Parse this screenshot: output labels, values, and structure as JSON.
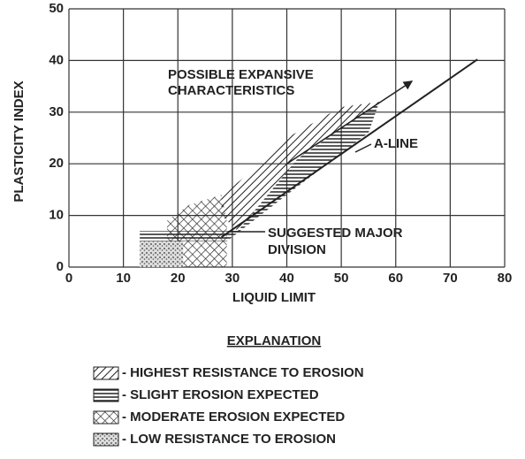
{
  "chart_data": {
    "type": "region",
    "x_label": "LIQUID LIMIT",
    "y_label": "PLASTICITY INDEX",
    "xlim": [
      0,
      80
    ],
    "ylim": [
      0,
      50
    ],
    "xticks": [
      0,
      10,
      20,
      30,
      40,
      50,
      60,
      70,
      80
    ],
    "yticks": [
      0,
      10,
      20,
      30,
      40,
      50
    ],
    "grid": true,
    "series": [
      {
        "name": "- LOW RESISTANCE TO EROSION",
        "pattern": "stipple",
        "x": [
          13,
          21,
          21,
          13
        ],
        "y": [
          0,
          0,
          5,
          5
        ]
      },
      {
        "name": "- MODERATE EROSION EXPECTED",
        "pattern": "crosshatch",
        "x": [
          21,
          29,
          29,
          28,
          22,
          18,
          18,
          21
        ],
        "y": [
          0,
          0,
          9,
          14,
          12,
          9,
          5,
          5
        ]
      },
      {
        "name": "- SLIGHT EROSION EXPECTED",
        "pattern": "horizontal",
        "x": [
          13,
          29,
          40,
          55,
          57,
          42,
          31,
          13
        ],
        "y": [
          5,
          5,
          14,
          26,
          32,
          21,
          7,
          7
        ]
      },
      {
        "name": "- HIGHEST RESISTANCE TO EROSION",
        "pattern": "diagonal",
        "x": [
          28,
          31,
          42,
          57,
          50,
          40,
          33,
          28
        ],
        "y": [
          10,
          7,
          21,
          32,
          31,
          25,
          18,
          14
        ]
      }
    ],
    "a_line": {
      "x": [
        28,
        75
      ],
      "y": [
        5.8,
        40.2
      ]
    },
    "expansive_arrow": {
      "x": [
        40,
        63
      ],
      "y": [
        20,
        36
      ]
    },
    "annotations": {
      "expansive": [
        "POSSIBLE EXPANSIVE",
        "CHARACTERISTICS"
      ],
      "a_line": "A-LINE",
      "division": [
        "SUGGESTED MAJOR",
        "DIVISION"
      ]
    },
    "legend_title": "EXPLANATION",
    "legend_order": [
      3,
      2,
      1,
      0
    ]
  }
}
